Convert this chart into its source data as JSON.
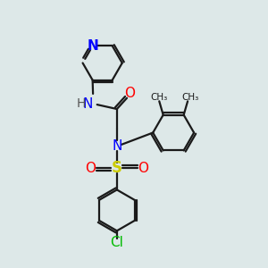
{
  "background_color": "#dde8e8",
  "bond_color": "#1a1a1a",
  "bond_width": 1.6,
  "atom_colors": {
    "N": "#0000ff",
    "O": "#ff0000",
    "S": "#cccc00",
    "Cl": "#00bb00",
    "C": "#1a1a1a",
    "H": "#555555"
  },
  "font_size_atoms": 10,
  "figsize": [
    3.0,
    3.0
  ],
  "dpi": 100
}
